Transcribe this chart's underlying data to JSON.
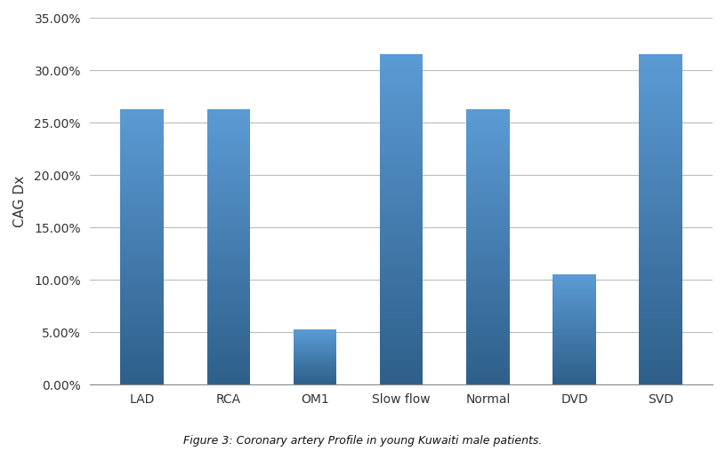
{
  "categories": [
    "LAD",
    "RCA",
    "OM1",
    "Slow flow",
    "Normal",
    "DVD",
    "SVD"
  ],
  "values": [
    0.2632,
    0.2632,
    0.0526,
    0.3158,
    0.2632,
    0.1053,
    0.3158
  ],
  "bar_color_top": "#5B9BD5",
  "bar_color_bottom": "#2E5F8A",
  "ylabel": "CAG Dx",
  "ylim": [
    0,
    0.35
  ],
  "yticks": [
    0.0,
    0.05,
    0.1,
    0.15,
    0.2,
    0.25,
    0.3,
    0.35
  ],
  "ytick_labels": [
    "0.00%",
    "5.00%",
    "10.00%",
    "15.00%",
    "20.00%",
    "25.00%",
    "30.00%",
    "35.00%"
  ],
  "caption": "Figure 3: Coronary artery Profile in young Kuwaiti male patients.",
  "background_color": "#FFFFFF",
  "grid_color": "#BBBBBB",
  "bar_width": 0.5,
  "axis_label_fontsize": 11,
  "tick_fontsize": 10,
  "caption_fontsize": 9
}
